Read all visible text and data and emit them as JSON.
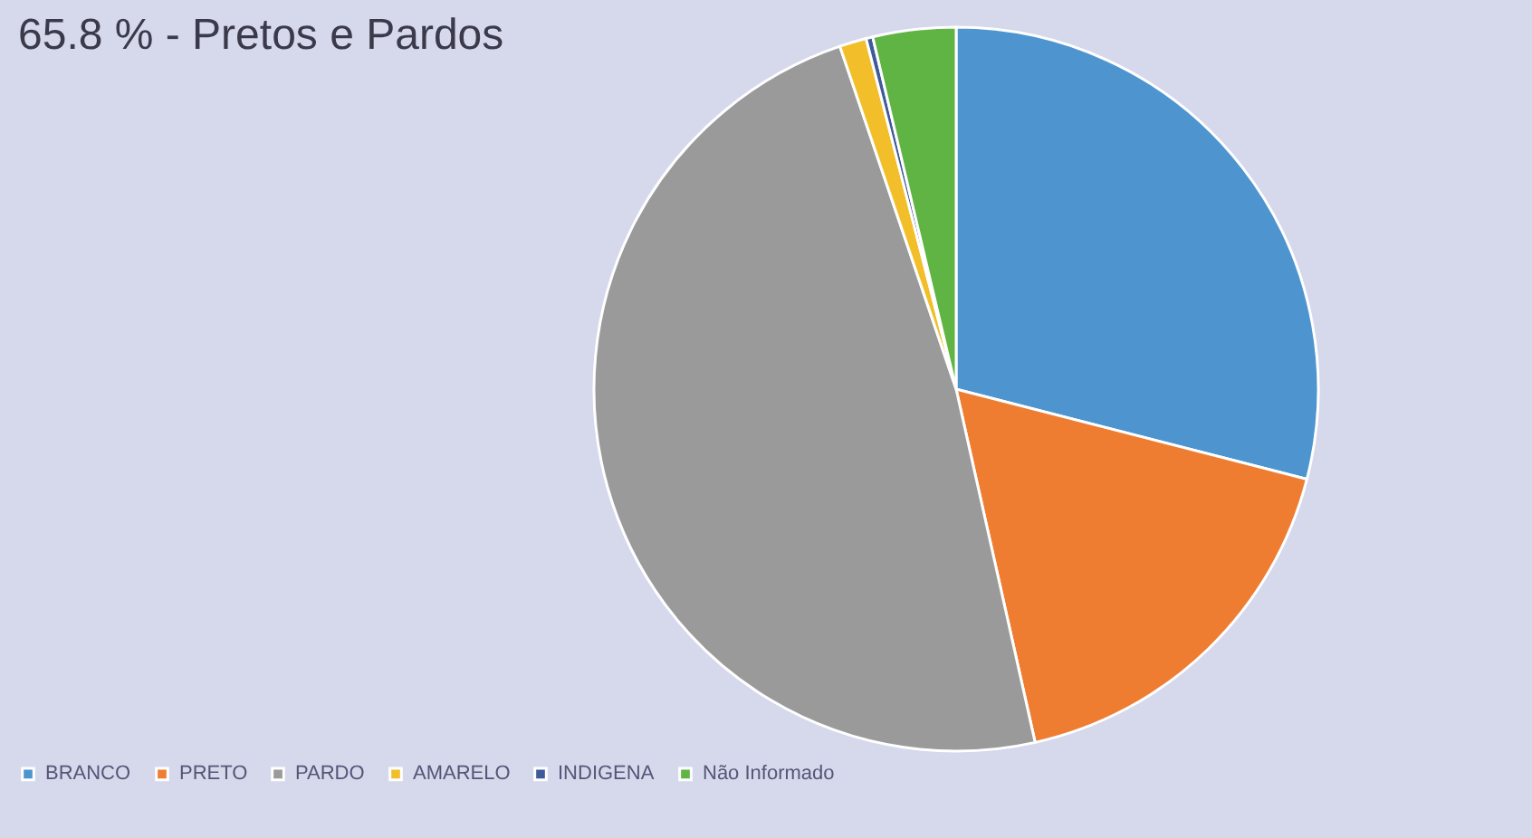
{
  "chart_data": {
    "type": "pie",
    "title": "65.8 % - Pretos e Pardos",
    "categories": [
      "BRANCO",
      "PRETO",
      "PARDO",
      "AMARELO",
      "INDIGENA",
      "Não Informado"
    ],
    "values": [
      29.0,
      17.5,
      48.3,
      1.2,
      0.3,
      3.7
    ],
    "colors": [
      "#4e95d0",
      "#ee7d31",
      "#9a9a9a",
      "#f2bf2a",
      "#3e5a99",
      "#5fb443"
    ],
    "legend": "bottom"
  }
}
